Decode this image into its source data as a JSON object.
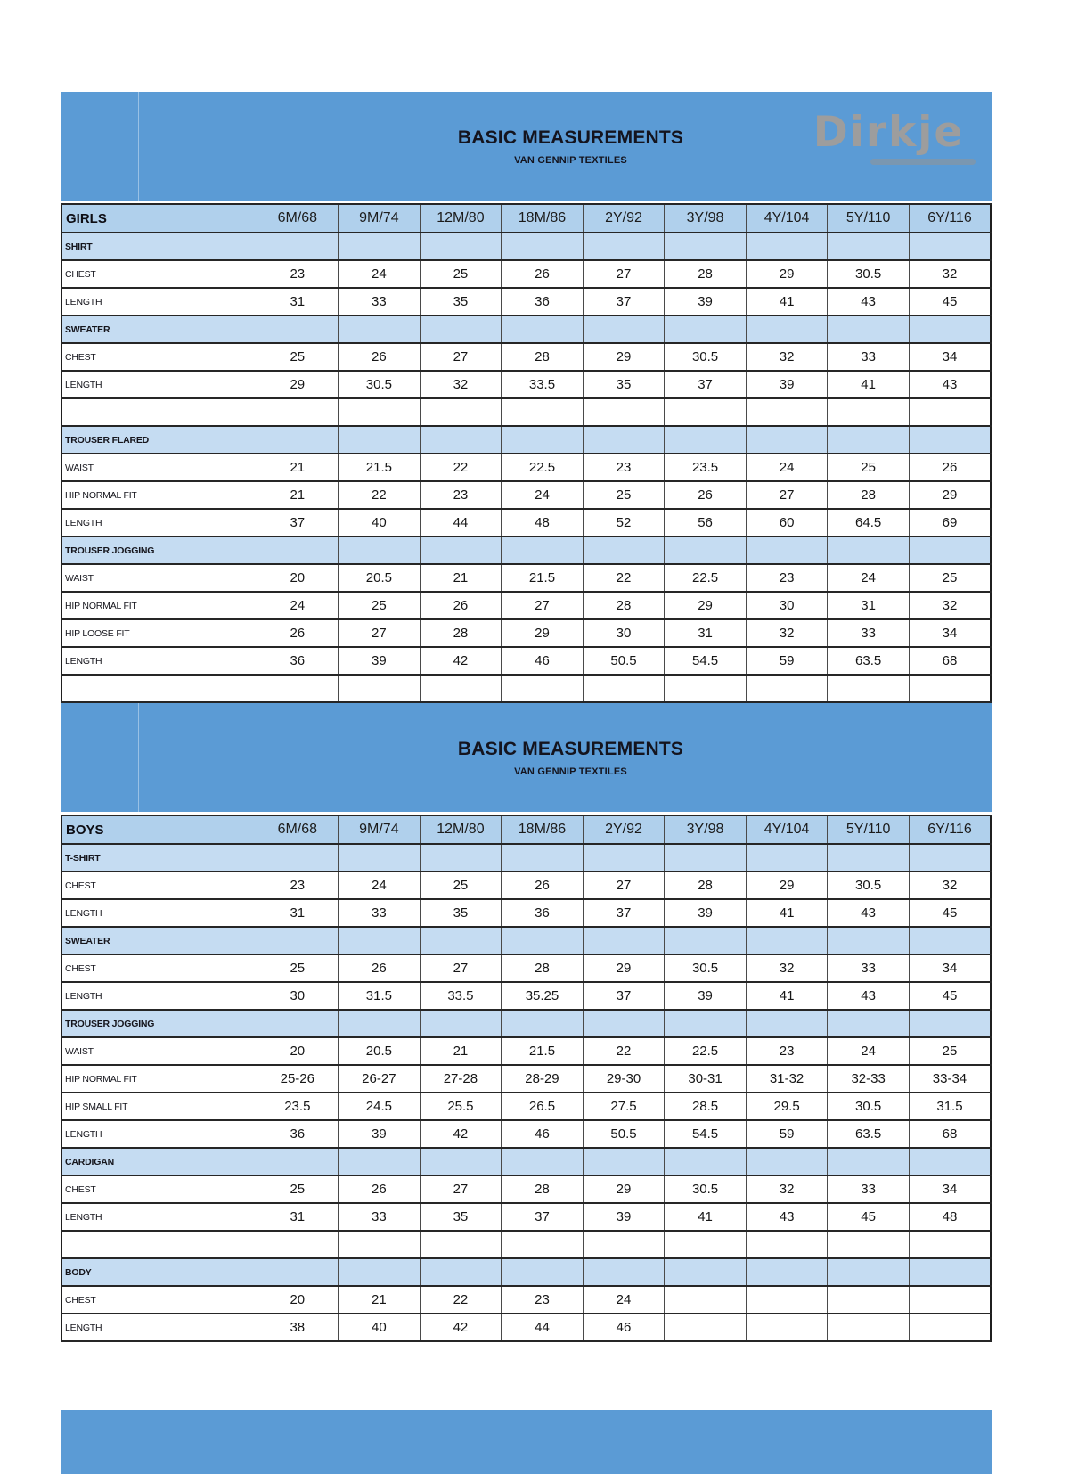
{
  "banner": {
    "title": "BASIC MEASUREMENTS",
    "subtitle": "VAN GENNIP TEXTILES",
    "color": "#5b9bd5"
  },
  "logo": {
    "text": "Dirkje",
    "color": "#9d9d9d"
  },
  "colors": {
    "banner_blue": "#5b9bd5",
    "header_row_blue": "#b0d0ec",
    "section_row_blue": "#c5dcf2",
    "border_dark": "#262626"
  },
  "sizes": [
    "6M/68",
    "9M/74",
    "12M/80",
    "18M/86",
    "2Y/92",
    "3Y/98",
    "4Y/104",
    "5Y/110",
    "6Y/116"
  ],
  "girls_table": {
    "header": "GIRLS",
    "rows": [
      {
        "type": "section",
        "label": "SHIRT"
      },
      {
        "type": "data",
        "label": "CHEST",
        "values": [
          "23",
          "24",
          "25",
          "26",
          "27",
          "28",
          "29",
          "30.5",
          "32"
        ]
      },
      {
        "type": "data",
        "label": "LENGTH",
        "values": [
          "31",
          "33",
          "35",
          "36",
          "37",
          "39",
          "41",
          "43",
          "45"
        ]
      },
      {
        "type": "section",
        "label": "SWEATER"
      },
      {
        "type": "data",
        "label": "CHEST",
        "values": [
          "25",
          "26",
          "27",
          "28",
          "29",
          "30.5",
          "32",
          "33",
          "34"
        ]
      },
      {
        "type": "data",
        "label": "LENGTH",
        "values": [
          "29",
          "30.5",
          "32",
          "33.5",
          "35",
          "37",
          "39",
          "41",
          "43"
        ]
      },
      {
        "type": "empty"
      },
      {
        "type": "section",
        "label": "TROUSER FLARED"
      },
      {
        "type": "data",
        "label": "WAIST",
        "values": [
          "21",
          "21.5",
          "22",
          "22.5",
          "23",
          "23.5",
          "24",
          "25",
          "26"
        ]
      },
      {
        "type": "data",
        "label": "HIP NORMAL FIT",
        "values": [
          "21",
          "22",
          "23",
          "24",
          "25",
          "26",
          "27",
          "28",
          "29"
        ]
      },
      {
        "type": "data",
        "label": "LENGTH",
        "values": [
          "37",
          "40",
          "44",
          "48",
          "52",
          "56",
          "60",
          "64.5",
          "69"
        ]
      },
      {
        "type": "section",
        "label": "TROUSER JOGGING"
      },
      {
        "type": "data",
        "label": "WAIST",
        "values": [
          "20",
          "20.5",
          "21",
          "21.5",
          "22",
          "22.5",
          "23",
          "24",
          "25"
        ]
      },
      {
        "type": "data",
        "label": "HIP NORMAL FIT",
        "values": [
          "24",
          "25",
          "26",
          "27",
          "28",
          "29",
          "30",
          "31",
          "32"
        ]
      },
      {
        "type": "data",
        "label": "HIP LOOSE FIT",
        "values": [
          "26",
          "27",
          "28",
          "29",
          "30",
          "31",
          "32",
          "33",
          "34"
        ]
      },
      {
        "type": "data",
        "label": "LENGTH",
        "values": [
          "36",
          "39",
          "42",
          "46",
          "50.5",
          "54.5",
          "59",
          "63.5",
          "68"
        ]
      },
      {
        "type": "empty"
      }
    ]
  },
  "boys_table": {
    "header": "BOYS",
    "rows": [
      {
        "type": "section",
        "label": "T-SHIRT"
      },
      {
        "type": "data",
        "label": "CHEST",
        "values": [
          "23",
          "24",
          "25",
          "26",
          "27",
          "28",
          "29",
          "30.5",
          "32"
        ]
      },
      {
        "type": "data",
        "label": "LENGTH",
        "values": [
          "31",
          "33",
          "35",
          "36",
          "37",
          "39",
          "41",
          "43",
          "45"
        ]
      },
      {
        "type": "section",
        "label": "SWEATER"
      },
      {
        "type": "data",
        "label": "CHEST",
        "values": [
          "25",
          "26",
          "27",
          "28",
          "29",
          "30.5",
          "32",
          "33",
          "34"
        ]
      },
      {
        "type": "data",
        "label": "LENGTH",
        "values": [
          "30",
          "31.5",
          "33.5",
          "35.25",
          "37",
          "39",
          "41",
          "43",
          "45"
        ]
      },
      {
        "type": "section",
        "label": "TROUSER JOGGING"
      },
      {
        "type": "data",
        "label": "WAIST",
        "values": [
          "20",
          "20.5",
          "21",
          "21.5",
          "22",
          "22.5",
          "23",
          "24",
          "25"
        ]
      },
      {
        "type": "data",
        "label": "HIP NORMAL FIT",
        "values": [
          "25-26",
          "26-27",
          "27-28",
          "28-29",
          "29-30",
          "30-31",
          "31-32",
          "32-33",
          "33-34"
        ]
      },
      {
        "type": "data",
        "label": "HIP SMALL FIT",
        "values": [
          "23.5",
          "24.5",
          "25.5",
          "26.5",
          "27.5",
          "28.5",
          "29.5",
          "30.5",
          "31.5"
        ]
      },
      {
        "type": "data",
        "label": "LENGTH",
        "values": [
          "36",
          "39",
          "42",
          "46",
          "50.5",
          "54.5",
          "59",
          "63.5",
          "68"
        ]
      },
      {
        "type": "section",
        "label": "CARDIGAN"
      },
      {
        "type": "data",
        "label": "CHEST",
        "values": [
          "25",
          "26",
          "27",
          "28",
          "29",
          "30.5",
          "32",
          "33",
          "34"
        ]
      },
      {
        "type": "data",
        "label": "LENGTH",
        "values": [
          "31",
          "33",
          "35",
          "37",
          "39",
          "41",
          "43",
          "45",
          "48"
        ]
      },
      {
        "type": "empty"
      },
      {
        "type": "section",
        "label": "BODY"
      },
      {
        "type": "data",
        "label": "CHEST",
        "values": [
          "20",
          "21",
          "22",
          "23",
          "24",
          "",
          "",
          "",
          ""
        ]
      },
      {
        "type": "data",
        "label": "LENGTH",
        "values": [
          "38",
          "40",
          "42",
          "44",
          "46",
          "",
          "",
          "",
          ""
        ]
      }
    ]
  }
}
